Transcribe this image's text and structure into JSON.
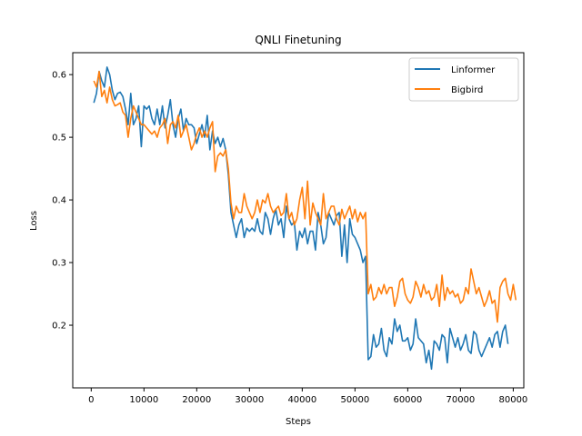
{
  "chart_data": {
    "type": "line",
    "title": "QNLI Finetuning",
    "xlabel": "Steps",
    "ylabel": "Loss",
    "xlim": [
      -3500,
      82000
    ],
    "ylim": [
      0.1,
      0.635
    ],
    "xticks": [
      0,
      10000,
      20000,
      30000,
      40000,
      50000,
      60000,
      70000,
      80000
    ],
    "yticks": [
      0.2,
      0.3,
      0.4,
      0.5,
      0.6
    ],
    "xtick_labels": [
      "0",
      "10000",
      "20000",
      "30000",
      "40000",
      "50000",
      "60000",
      "70000",
      "80000"
    ],
    "ytick_labels": [
      "0.2",
      "0.3",
      "0.4",
      "0.5",
      "0.6"
    ],
    "grid": false,
    "legend_position": "top-right",
    "x_start": 500,
    "x_step": 500,
    "series": [
      {
        "name": "Linformer",
        "color": "#1f77b4",
        "values": [
          0.555,
          0.57,
          0.605,
          0.59,
          0.58,
          0.612,
          0.6,
          0.575,
          0.56,
          0.57,
          0.572,
          0.565,
          0.545,
          0.52,
          0.57,
          0.52,
          0.53,
          0.55,
          0.485,
          0.55,
          0.545,
          0.55,
          0.53,
          0.52,
          0.545,
          0.52,
          0.55,
          0.515,
          0.535,
          0.56,
          0.52,
          0.5,
          0.53,
          0.545,
          0.51,
          0.53,
          0.52,
          0.52,
          0.515,
          0.49,
          0.505,
          0.52,
          0.5,
          0.535,
          0.48,
          0.51,
          0.49,
          0.5,
          0.485,
          0.498,
          0.48,
          0.44,
          0.38,
          0.36,
          0.34,
          0.36,
          0.37,
          0.34,
          0.355,
          0.35,
          0.355,
          0.35,
          0.37,
          0.35,
          0.345,
          0.38,
          0.37,
          0.345,
          0.37,
          0.385,
          0.36,
          0.37,
          0.34,
          0.39,
          0.37,
          0.36,
          0.365,
          0.32,
          0.35,
          0.34,
          0.355,
          0.33,
          0.35,
          0.35,
          0.32,
          0.38,
          0.36,
          0.33,
          0.34,
          0.38,
          0.37,
          0.36,
          0.375,
          0.38,
          0.31,
          0.36,
          0.3,
          0.37,
          0.345,
          0.34,
          0.33,
          0.32,
          0.3,
          0.31,
          0.145,
          0.15,
          0.185,
          0.165,
          0.17,
          0.195,
          0.16,
          0.15,
          0.18,
          0.17,
          0.21,
          0.19,
          0.2,
          0.175,
          0.175,
          0.18,
          0.16,
          0.17,
          0.21,
          0.18,
          0.175,
          0.17,
          0.14,
          0.16,
          0.13,
          0.175,
          0.17,
          0.16,
          0.185,
          0.18,
          0.14,
          0.195,
          0.18,
          0.165,
          0.18,
          0.16,
          0.17,
          0.185,
          0.16,
          0.155,
          0.19,
          0.185,
          0.16,
          0.15,
          0.16,
          0.17,
          0.18,
          0.165,
          0.185,
          0.19,
          0.165,
          0.19,
          0.2,
          0.17
        ]
      },
      {
        "name": "Bigbird",
        "color": "#ff7f0e",
        "values": [
          0.59,
          0.58,
          0.605,
          0.565,
          0.575,
          0.555,
          0.58,
          0.56,
          0.55,
          0.552,
          0.555,
          0.54,
          0.535,
          0.5,
          0.53,
          0.55,
          0.54,
          0.53,
          0.52,
          0.52,
          0.515,
          0.51,
          0.505,
          0.51,
          0.5,
          0.515,
          0.52,
          0.53,
          0.49,
          0.52,
          0.525,
          0.515,
          0.535,
          0.5,
          0.51,
          0.52,
          0.5,
          0.48,
          0.49,
          0.505,
          0.515,
          0.5,
          0.51,
          0.5,
          0.515,
          0.525,
          0.445,
          0.47,
          0.475,
          0.47,
          0.48,
          0.45,
          0.395,
          0.37,
          0.39,
          0.38,
          0.38,
          0.41,
          0.39,
          0.38,
          0.37,
          0.38,
          0.4,
          0.38,
          0.4,
          0.395,
          0.41,
          0.39,
          0.38,
          0.385,
          0.39,
          0.375,
          0.38,
          0.41,
          0.37,
          0.38,
          0.36,
          0.37,
          0.4,
          0.42,
          0.37,
          0.43,
          0.36,
          0.395,
          0.38,
          0.37,
          0.36,
          0.41,
          0.37,
          0.38,
          0.39,
          0.39,
          0.37,
          0.36,
          0.385,
          0.37,
          0.38,
          0.39,
          0.37,
          0.385,
          0.365,
          0.38,
          0.37,
          0.38,
          0.25,
          0.265,
          0.24,
          0.245,
          0.26,
          0.25,
          0.265,
          0.25,
          0.26,
          0.26,
          0.23,
          0.245,
          0.27,
          0.275,
          0.25,
          0.24,
          0.235,
          0.245,
          0.27,
          0.26,
          0.245,
          0.265,
          0.25,
          0.255,
          0.24,
          0.245,
          0.265,
          0.23,
          0.28,
          0.24,
          0.26,
          0.25,
          0.255,
          0.245,
          0.25,
          0.235,
          0.24,
          0.26,
          0.25,
          0.29,
          0.27,
          0.25,
          0.26,
          0.245,
          0.23,
          0.24,
          0.255,
          0.235,
          0.24,
          0.205,
          0.26,
          0.27,
          0.275,
          0.25,
          0.24,
          0.265,
          0.24
        ]
      }
    ]
  }
}
